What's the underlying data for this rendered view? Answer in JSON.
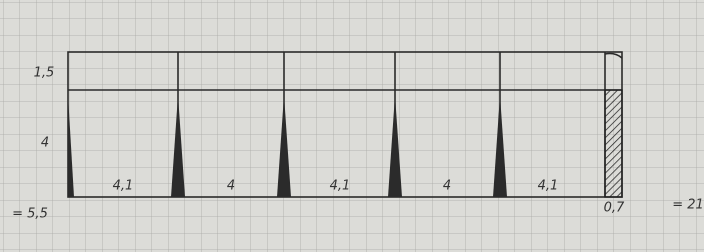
{
  "labels": {
    "top_height": "1,5",
    "bottom_height": "4",
    "total_height": "= 5,5",
    "end_width": "0,7",
    "total_width": "= 21"
  },
  "bay_widths": [
    "4,1",
    "4",
    "4,1",
    "4",
    "4,1"
  ]
}
